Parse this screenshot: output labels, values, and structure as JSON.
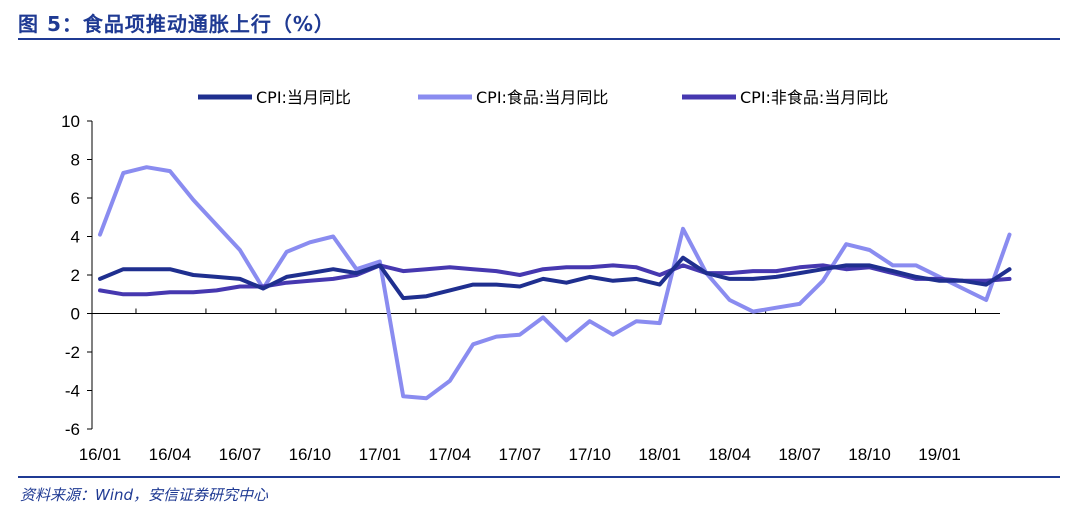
{
  "title": "图 5：食品项推动通胀上行（%）",
  "source": "资料来源：Wind，安信证券研究中心",
  "chart_data": {
    "type": "line",
    "ylim": [
      -6,
      10
    ],
    "yticks": [
      "10",
      "8",
      "6",
      "4",
      "2",
      "0",
      "-2",
      "-4",
      "-6"
    ],
    "ytick_values": [
      10,
      8,
      6,
      4,
      2,
      0,
      -2,
      -4,
      -6
    ],
    "xtick_labels": [
      "16/01",
      "16/04",
      "16/07",
      "16/10",
      "17/01",
      "17/04",
      "17/07",
      "17/10",
      "18/01",
      "18/04",
      "18/07",
      "18/10",
      "19/01"
    ],
    "n_points": 40,
    "grid": false,
    "legend_position": "top",
    "series": [
      {
        "name": "CPI:当月同比",
        "color": "#1f2f8f",
        "values": [
          1.8,
          2.3,
          2.3,
          2.3,
          2.0,
          1.9,
          1.8,
          1.3,
          1.9,
          2.1,
          2.3,
          2.1,
          2.5,
          0.8,
          0.9,
          1.2,
          1.5,
          1.5,
          1.4,
          1.8,
          1.6,
          1.9,
          1.7,
          1.8,
          1.5,
          2.9,
          2.1,
          1.8,
          1.8,
          1.9,
          2.1,
          2.3,
          2.5,
          2.5,
          2.2,
          1.9,
          1.7,
          1.7,
          1.5,
          2.3
        ]
      },
      {
        "name": "CPI:食品:当月同比",
        "color": "#8a8cf0",
        "values": [
          4.1,
          7.3,
          7.6,
          7.4,
          5.9,
          4.6,
          3.3,
          1.3,
          3.2,
          3.7,
          4.0,
          2.3,
          2.7,
          -4.3,
          -4.4,
          -3.5,
          -1.6,
          -1.2,
          -1.1,
          -0.2,
          -1.4,
          -0.4,
          -1.1,
          -0.4,
          -0.5,
          4.4,
          2.1,
          0.7,
          0.1,
          0.3,
          0.5,
          1.7,
          3.6,
          3.3,
          2.5,
          2.5,
          1.9,
          1.3,
          0.7,
          4.1
        ]
      },
      {
        "name": "CPI:非食品:当月同比",
        "color": "#4638b0",
        "values": [
          1.2,
          1.0,
          1.0,
          1.1,
          1.1,
          1.2,
          1.4,
          1.4,
          1.6,
          1.7,
          1.8,
          2.0,
          2.5,
          2.2,
          2.3,
          2.4,
          2.3,
          2.2,
          2.0,
          2.3,
          2.4,
          2.4,
          2.5,
          2.4,
          2.0,
          2.5,
          2.1,
          2.1,
          2.2,
          2.2,
          2.4,
          2.5,
          2.3,
          2.4,
          2.1,
          1.8,
          1.8,
          1.7,
          1.7,
          1.8
        ]
      }
    ]
  }
}
